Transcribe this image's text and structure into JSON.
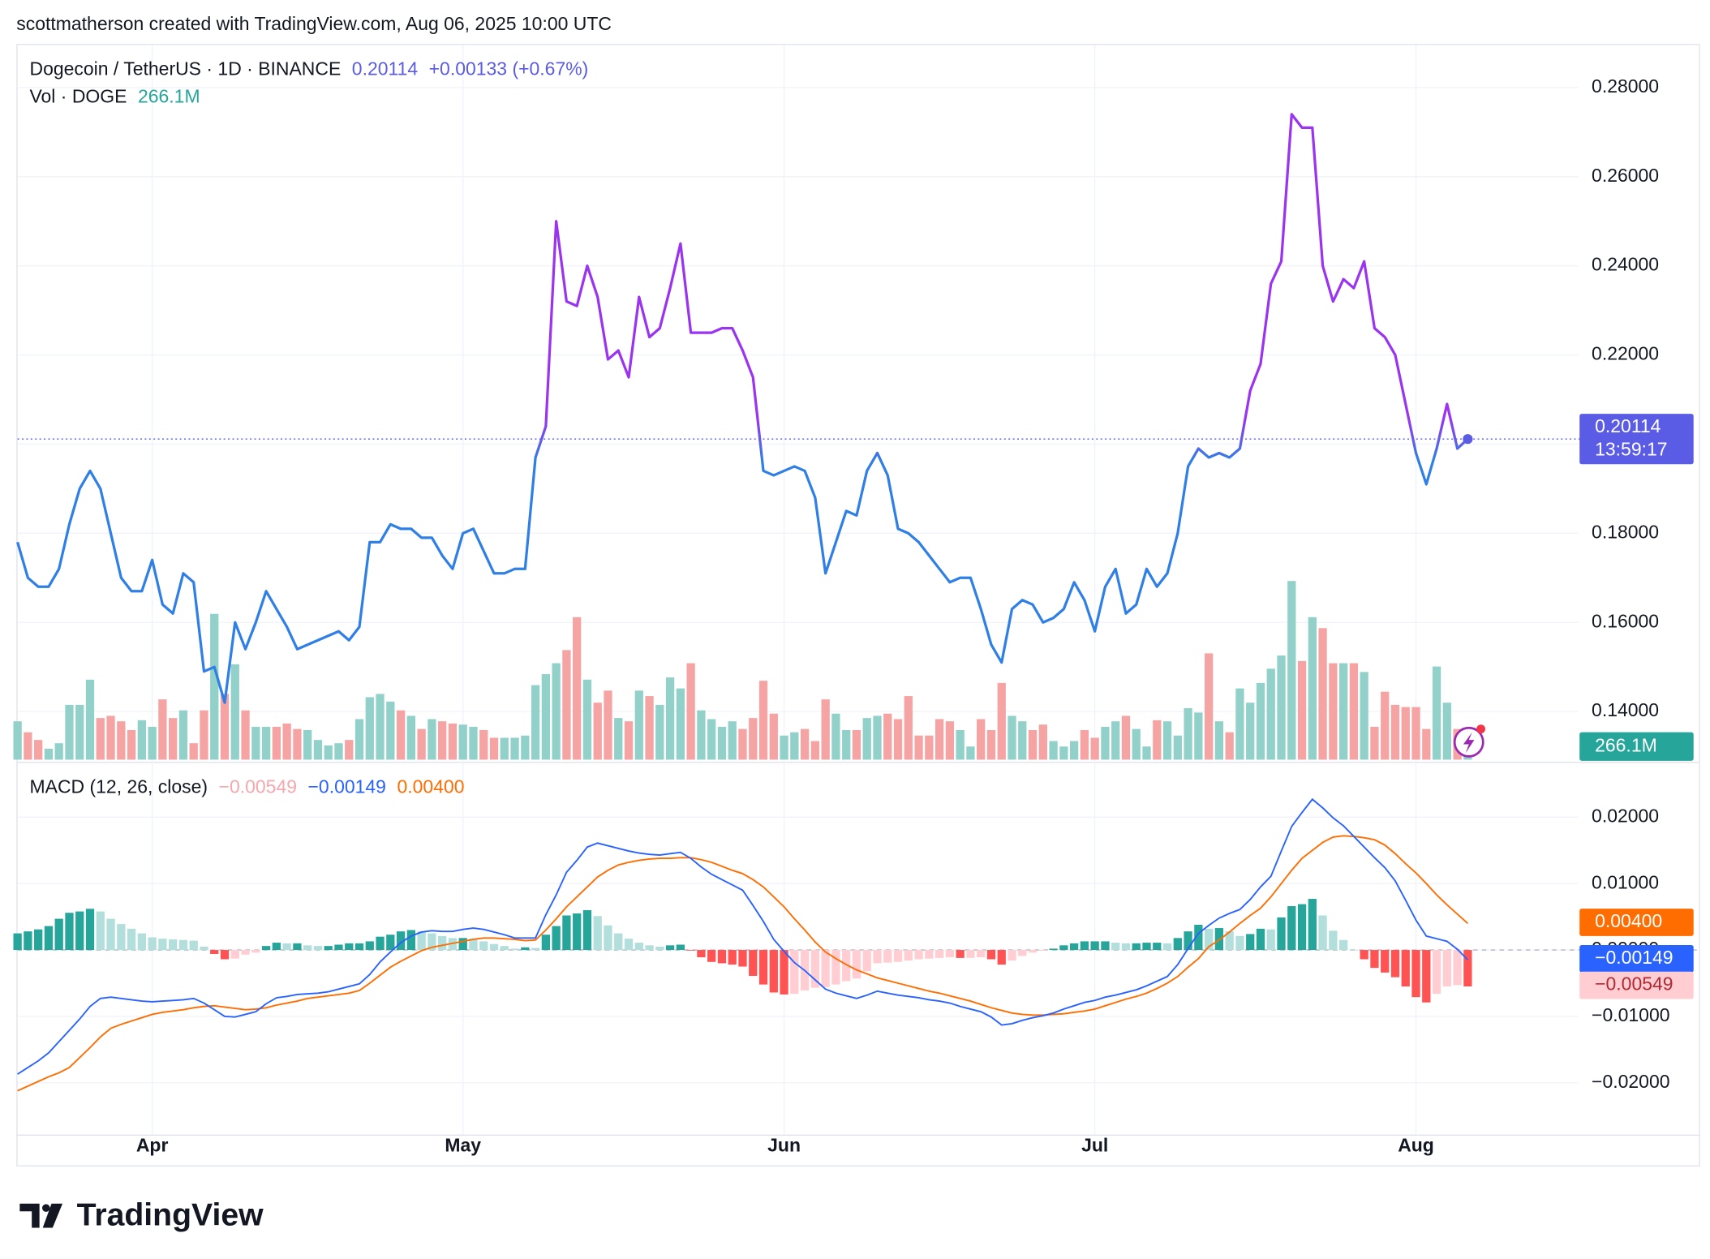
{
  "header": {
    "attribution": "scottmatherson created with TradingView.com, Aug 06, 2025 10:00 UTC"
  },
  "footer": {
    "brand": "TradingView"
  },
  "chart_data": [
    {
      "type": "line",
      "title": "Dogecoin / TetherUS · 1D · BINANCE",
      "change": "+0.00133 (+0.67%)",
      "countdown": "13:59:17",
      "categories": [
        null,
        null,
        null,
        null,
        null,
        null,
        null,
        null,
        null,
        null,
        null,
        null,
        null,
        "Apr",
        null,
        null,
        null,
        null,
        null,
        null,
        null,
        null,
        null,
        null,
        null,
        null,
        null,
        null,
        null,
        null,
        null,
        null,
        null,
        null,
        null,
        null,
        null,
        null,
        null,
        null,
        null,
        null,
        null,
        "May",
        null,
        null,
        null,
        null,
        null,
        null,
        null,
        null,
        null,
        null,
        null,
        null,
        null,
        null,
        null,
        null,
        null,
        null,
        null,
        null,
        null,
        null,
        null,
        null,
        null,
        null,
        null,
        null,
        null,
        null,
        "Jun",
        null,
        null,
        null,
        null,
        null,
        null,
        null,
        null,
        null,
        null,
        null,
        null,
        null,
        null,
        null,
        null,
        null,
        null,
        null,
        null,
        null,
        null,
        null,
        null,
        null,
        null,
        null,
        null,
        null,
        "Jul",
        null,
        null,
        null,
        null,
        null,
        null,
        null,
        null,
        null,
        null,
        null,
        null,
        null,
        null,
        null,
        null,
        null,
        null,
        null,
        null,
        null,
        null,
        null,
        null,
        null,
        null,
        null,
        null,
        null,
        null,
        "Aug",
        null,
        null,
        null,
        null,
        null
      ],
      "values": [
        0.178,
        0.17,
        0.168,
        0.168,
        0.172,
        0.182,
        0.19,
        0.194,
        0.19,
        0.18,
        0.17,
        0.167,
        0.167,
        0.174,
        0.164,
        0.162,
        0.171,
        0.169,
        0.149,
        0.15,
        0.142,
        0.16,
        0.154,
        0.16,
        0.167,
        0.163,
        0.159,
        0.154,
        0.155,
        0.156,
        0.157,
        0.158,
        0.156,
        0.159,
        0.178,
        0.178,
        0.182,
        0.181,
        0.181,
        0.179,
        0.179,
        0.175,
        0.172,
        0.18,
        0.181,
        0.176,
        0.171,
        0.171,
        0.172,
        0.172,
        0.197,
        0.204,
        0.25,
        0.232,
        0.231,
        0.24,
        0.233,
        0.219,
        0.221,
        0.215,
        0.233,
        0.224,
        0.226,
        0.235,
        0.245,
        0.225,
        0.225,
        0.225,
        0.226,
        0.226,
        0.221,
        0.215,
        0.194,
        0.193,
        0.194,
        0.195,
        0.194,
        0.188,
        0.171,
        0.178,
        0.185,
        0.184,
        0.194,
        0.198,
        0.193,
        0.181,
        0.18,
        0.178,
        0.175,
        0.172,
        0.169,
        0.17,
        0.17,
        0.163,
        0.155,
        0.151,
        0.163,
        0.165,
        0.164,
        0.16,
        0.161,
        0.163,
        0.169,
        0.165,
        0.158,
        0.168,
        0.172,
        0.162,
        0.164,
        0.172,
        0.168,
        0.171,
        0.18,
        0.195,
        0.199,
        0.197,
        0.198,
        0.197,
        0.199,
        0.212,
        0.218,
        0.236,
        0.241,
        0.274,
        0.271,
        0.271,
        0.24,
        0.232,
        0.237,
        0.235,
        0.241,
        0.226,
        0.224,
        0.22,
        0.209,
        0.198,
        0.191,
        0.199,
        0.209,
        0.199,
        0.20114
      ],
      "color": "#2f7fe6",
      "color_above": "#9a34f0",
      "last_color": "#5b5ce6",
      "ylim": [
        0.1292,
        0.2898
      ],
      "yticks": [
        {
          "value": 0.14,
          "label": "0.14000"
        },
        {
          "value": 0.16,
          "label": "0.16000"
        },
        {
          "value": 0.18,
          "label": "0.18000"
        },
        {
          "value": 0.2,
          "label": "0.20000"
        },
        {
          "value": 0.22,
          "label": "0.22000"
        },
        {
          "value": 0.24,
          "label": "0.24000"
        },
        {
          "value": 0.26,
          "label": "0.26000"
        },
        {
          "value": 0.28,
          "label": "0.28000"
        }
      ],
      "grid": true
    },
    {
      "type": "bar",
      "title": "Vol · DOGE",
      "last_label": "266.1M",
      "up_color": "#92d1ca",
      "down_color": "#f5a3a3",
      "label_color": "#26a69a",
      "values": [
        910,
        650,
        468,
        260,
        390,
        1300,
        1300,
        1898,
        988,
        1040,
        910,
        702,
        936,
        780,
        1430,
        988,
        1170,
        390,
        1170,
        3458,
        1560,
        2262,
        1170,
        780,
        780,
        780,
        858,
        728,
        702,
        468,
        338,
        390,
        468,
        962,
        1482,
        1560,
        1378,
        1170,
        1040,
        728,
        962,
        910,
        858,
        832,
        780,
        702,
        520,
        520,
        520,
        572,
        1768,
        2028,
        2288,
        2600,
        3380,
        1898,
        1352,
        1638,
        988,
        910,
        1638,
        1508,
        1300,
        1950,
        1690,
        2288,
        1170,
        962,
        780,
        910,
        728,
        988,
        1872,
        1092,
        572,
        650,
        728,
        442,
        1430,
        1092,
        702,
        702,
        988,
        1040,
        1092,
        962,
        1508,
        572,
        572,
        962,
        910,
        702,
        312,
        962,
        702,
        1820,
        1040,
        910,
        702,
        832,
        442,
        312,
        442,
        702,
        520,
        780,
        910,
        1040,
        728,
        312,
        936,
        910,
        572,
        1222,
        1118,
        2522,
        910,
        650,
        1690,
        1352,
        1820,
        2158,
        2470,
        4238,
        2340,
        3380,
        3120,
        2288,
        2288,
        2288,
        2080,
        780,
        1612,
        1300,
        1248,
        1248,
        728,
        2210,
        1352,
        728,
        266.1
      ]
    },
    {
      "type": "macd",
      "title": "MACD (12, 26, close)",
      "ylim": [
        -0.0278,
        0.028
      ],
      "yticks": [
        {
          "value": -0.02,
          "label": "−0.02000"
        },
        {
          "value": -0.01,
          "label": "−0.01000"
        },
        {
          "value": 0,
          "label": "0.00000"
        },
        {
          "value": 0.01,
          "label": "0.01000"
        },
        {
          "value": 0.02,
          "label": "0.02000"
        }
      ],
      "histogram": {
        "last_label": "−0.00549",
        "colors": [
          "#26a69a",
          "#b2dfdb",
          "#ff5252",
          "#ffcdd2"
        ],
        "label_color": "#f5a8ad",
        "values": [
          0.0025,
          0.0028,
          0.0031,
          0.0036,
          0.0047,
          0.0056,
          0.0058,
          0.0062,
          0.0058,
          0.0047,
          0.0039,
          0.0032,
          0.0025,
          0.0019,
          0.0017,
          0.0016,
          0.0015,
          0.0014,
          0.0005,
          -0.0006,
          -0.0014,
          -0.0013,
          -0.0007,
          -0.0004,
          0.0006,
          0.0011,
          0.001,
          0.001,
          0.0007,
          0.0006,
          0.0006,
          0.0008,
          0.001,
          0.001,
          0.0013,
          0.002,
          0.0023,
          0.0028,
          0.003,
          0.0028,
          0.0025,
          0.0021,
          0.0018,
          0.0018,
          0.0017,
          0.0013,
          0.0009,
          0.0006,
          0.0002,
          0.0004,
          0.0003,
          0.0023,
          0.0036,
          0.0052,
          0.0055,
          0.006,
          0.0051,
          0.0037,
          0.0025,
          0.0017,
          0.0011,
          0.0007,
          0.0005,
          0.0007,
          0.0008,
          -0.0001,
          -0.0011,
          -0.0018,
          -0.002,
          -0.0022,
          -0.0025,
          -0.0039,
          -0.0052,
          -0.0064,
          -0.0067,
          -0.0066,
          -0.0061,
          -0.0057,
          -0.0056,
          -0.0052,
          -0.0047,
          -0.0043,
          -0.0032,
          -0.002,
          -0.0019,
          -0.0018,
          -0.0016,
          -0.0014,
          -0.0013,
          -0.0012,
          -0.0011,
          -0.0012,
          -0.0012,
          -0.0011,
          -0.0014,
          -0.0022,
          -0.0016,
          -0.0009,
          -0.0004,
          -0.0001,
          0.0002,
          0.0007,
          0.001,
          0.0013,
          0.0013,
          0.0013,
          0.0011,
          0.001,
          0.001,
          0.0011,
          0.0011,
          0.001,
          0.0018,
          0.0028,
          0.0038,
          0.0032,
          0.0033,
          0.0028,
          0.0021,
          0.0024,
          0.0032,
          0.0031,
          0.0049,
          0.0066,
          0.0069,
          0.0077,
          0.0052,
          0.0029,
          0.0015,
          0.0,
          -0.0014,
          -0.0027,
          -0.0034,
          -0.0041,
          -0.0055,
          -0.0071,
          -0.0079,
          -0.0066,
          -0.0055,
          -0.0053,
          -0.00549
        ]
      },
      "macd": {
        "last_label": "−0.00149",
        "color": "#2962ff",
        "values": [
          -0.0187,
          -0.0177,
          -0.0167,
          -0.0155,
          -0.0138,
          -0.0121,
          -0.0104,
          -0.0085,
          -0.0073,
          -0.0071,
          -0.0073,
          -0.0075,
          -0.0077,
          -0.0078,
          -0.0077,
          -0.0076,
          -0.0075,
          -0.0073,
          -0.008,
          -0.009,
          -0.01,
          -0.0101,
          -0.0097,
          -0.0093,
          -0.0081,
          -0.0072,
          -0.007,
          -0.0067,
          -0.0066,
          -0.0065,
          -0.0063,
          -0.0059,
          -0.0055,
          -0.0051,
          -0.0037,
          -0.0018,
          -0.0003,
          0.0011,
          0.0021,
          0.0027,
          0.0029,
          0.0028,
          0.0028,
          0.0031,
          0.0033,
          0.0031,
          0.0027,
          0.0023,
          0.0018,
          0.0018,
          0.0018,
          0.0053,
          0.0083,
          0.0117,
          0.0135,
          0.0155,
          0.0161,
          0.0157,
          0.0153,
          0.0149,
          0.0146,
          0.0144,
          0.0143,
          0.0145,
          0.0147,
          0.0138,
          0.0125,
          0.0114,
          0.0106,
          0.0098,
          0.009,
          0.0067,
          0.0043,
          0.0016,
          -0.0002,
          -0.0019,
          -0.0031,
          -0.0045,
          -0.0059,
          -0.0065,
          -0.0069,
          -0.0073,
          -0.0068,
          -0.0062,
          -0.0065,
          -0.0068,
          -0.007,
          -0.0072,
          -0.0075,
          -0.0077,
          -0.008,
          -0.0085,
          -0.0089,
          -0.0093,
          -0.0101,
          -0.0113,
          -0.0111,
          -0.0106,
          -0.0102,
          -0.0099,
          -0.0095,
          -0.0089,
          -0.0084,
          -0.0079,
          -0.0076,
          -0.0071,
          -0.0068,
          -0.0064,
          -0.006,
          -0.0054,
          -0.0047,
          -0.004,
          -0.0022,
          0.0002,
          0.0025,
          0.0037,
          0.0048,
          0.0055,
          0.0061,
          0.0076,
          0.0095,
          0.0111,
          0.0149,
          0.0186,
          0.0207,
          0.0227,
          0.0214,
          0.0199,
          0.0187,
          0.0171,
          0.0155,
          0.0139,
          0.0124,
          0.0104,
          0.0075,
          0.0045,
          0.0021,
          0.0017,
          0.0013,
          0.0001,
          -0.00149
        ]
      },
      "signal": {
        "last_label": "0.00400",
        "color": "#ff6d00",
        "values": [
          -0.0212,
          -0.0205,
          -0.0198,
          -0.0191,
          -0.0185,
          -0.0177,
          -0.0162,
          -0.0147,
          -0.0131,
          -0.0118,
          -0.0112,
          -0.0107,
          -0.0102,
          -0.0097,
          -0.0094,
          -0.0092,
          -0.009,
          -0.0087,
          -0.0085,
          -0.0084,
          -0.0086,
          -0.0088,
          -0.009,
          -0.0089,
          -0.0087,
          -0.0083,
          -0.008,
          -0.0077,
          -0.0073,
          -0.0071,
          -0.0069,
          -0.0067,
          -0.0065,
          -0.0061,
          -0.005,
          -0.0038,
          -0.0026,
          -0.0017,
          -0.0009,
          -0.0001,
          0.0004,
          0.0007,
          0.001,
          0.0013,
          0.0016,
          0.0018,
          0.0018,
          0.0017,
          0.0016,
          0.0014,
          0.0015,
          0.003,
          0.0047,
          0.0065,
          0.008,
          0.0095,
          0.011,
          0.012,
          0.0128,
          0.0132,
          0.0135,
          0.0137,
          0.0138,
          0.0138,
          0.0139,
          0.0139,
          0.0136,
          0.0132,
          0.0126,
          0.012,
          0.0115,
          0.0106,
          0.0095,
          0.008,
          0.0065,
          0.0047,
          0.003,
          0.0012,
          -0.0003,
          -0.0013,
          -0.0022,
          -0.003,
          -0.0036,
          -0.0042,
          -0.0046,
          -0.005,
          -0.0054,
          -0.0058,
          -0.0062,
          -0.0065,
          -0.0069,
          -0.0073,
          -0.0077,
          -0.0082,
          -0.0087,
          -0.0091,
          -0.0095,
          -0.0097,
          -0.0098,
          -0.0098,
          -0.0097,
          -0.0096,
          -0.0094,
          -0.0092,
          -0.0089,
          -0.0084,
          -0.0079,
          -0.0074,
          -0.007,
          -0.0065,
          -0.0058,
          -0.005,
          -0.004,
          -0.0026,
          -0.0013,
          0.0005,
          0.0015,
          0.0027,
          0.004,
          0.0052,
          0.0063,
          0.008,
          0.01,
          0.012,
          0.0138,
          0.015,
          0.0162,
          0.017,
          0.0172,
          0.0171,
          0.0169,
          0.0166,
          0.0158,
          0.0145,
          0.013,
          0.0116,
          0.01,
          0.0083,
          0.0068,
          0.0054,
          0.004
        ]
      }
    }
  ]
}
